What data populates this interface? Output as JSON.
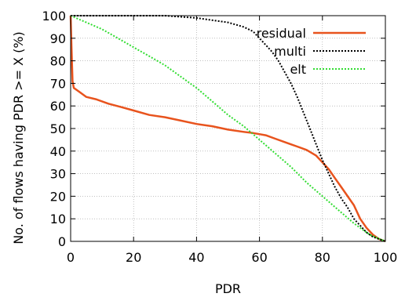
{
  "chart_data": {
    "type": "line",
    "title": "",
    "xlabel": "PDR",
    "ylabel": "No. of flows having PDR >= X (%)",
    "xlim": [
      0,
      100
    ],
    "ylim": [
      0,
      100
    ],
    "xticks": [
      "0",
      "20",
      "40",
      "60",
      "80",
      "100"
    ],
    "yticks": [
      "0",
      "10",
      "20",
      "30",
      "40",
      "50",
      "60",
      "70",
      "80",
      "90",
      "100"
    ],
    "grid": true,
    "legend_position": "top-right",
    "series": [
      {
        "name": "residual",
        "color": "#e8531d",
        "style": "solid",
        "x": [
          0,
          0.3,
          0.6,
          1,
          2,
          3,
          5,
          8,
          12,
          16,
          20,
          25,
          30,
          35,
          40,
          45,
          50,
          55,
          58,
          60,
          62,
          65,
          68,
          70,
          72,
          75,
          78,
          80,
          82,
          84,
          86,
          88,
          90,
          92,
          94,
          96,
          98,
          100
        ],
        "y": [
          100,
          85,
          71,
          68,
          67,
          66,
          64,
          63,
          61,
          59.5,
          58,
          56,
          55,
          53.5,
          52,
          51,
          49.5,
          48.5,
          48,
          47.5,
          47,
          45.5,
          44,
          43,
          42,
          40.5,
          38,
          35,
          32,
          28,
          24,
          20,
          16,
          10,
          6,
          3,
          1,
          0
        ]
      },
      {
        "name": "multi",
        "color": "#000000",
        "style": "dotted",
        "x": [
          0,
          5,
          10,
          20,
          30,
          40,
          45,
          50,
          55,
          58,
          60,
          62,
          64,
          66,
          68,
          70,
          72,
          74,
          76,
          78,
          80,
          82,
          84,
          86,
          88,
          90,
          92,
          94,
          96,
          98,
          100
        ],
        "y": [
          100,
          100,
          100,
          100,
          100,
          99,
          98,
          97,
          95,
          93,
          90,
          87,
          84,
          80,
          75,
          70,
          64,
          57,
          50,
          43,
          36,
          30,
          24,
          19,
          15,
          10,
          7,
          4,
          2,
          1,
          0
        ]
      },
      {
        "name": "elt",
        "color": "#33dd33",
        "style": "dotted",
        "x": [
          0,
          5,
          10,
          15,
          20,
          25,
          30,
          35,
          40,
          45,
          50,
          55,
          60,
          65,
          70,
          75,
          80,
          85,
          90,
          95,
          100
        ],
        "y": [
          100,
          97,
          94,
          90,
          86,
          82,
          78,
          73,
          68,
          62,
          56,
          51,
          45,
          39,
          33,
          26,
          20,
          14,
          8,
          3,
          0
        ]
      }
    ]
  }
}
